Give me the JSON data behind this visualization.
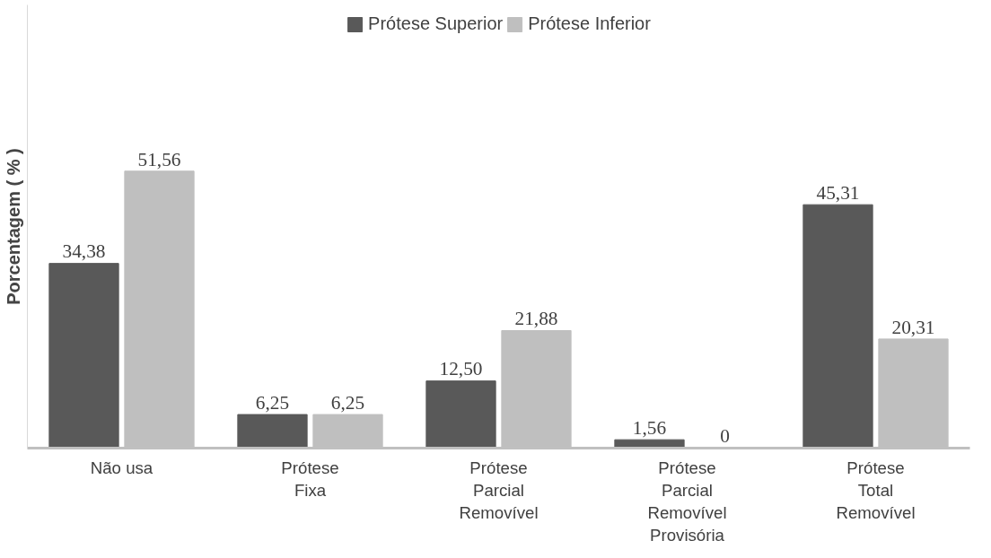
{
  "chart_data": {
    "type": "bar",
    "ylabel": "Porcentagem ( % )",
    "categories": [
      "Não usa",
      "Prótese\nFixa",
      "Prótese\nParcial\nRemovível",
      "Prótese\nParcial\nRemovível\nProvisória",
      "Prótese\nTotal\nRemovível"
    ],
    "series": [
      {
        "name": "Prótese Superior",
        "color": "#595959",
        "values": [
          34.38,
          6.25,
          12.5,
          1.56,
          45.31
        ],
        "value_labels": [
          "34,38",
          "6,25",
          "12,50",
          "1,56",
          "45,31"
        ]
      },
      {
        "name": "Prótese Inferior",
        "color": "#bfbfbf",
        "values": [
          51.56,
          6.25,
          21.88,
          0,
          20.31
        ],
        "value_labels": [
          "51,56",
          "6,25",
          "21,88",
          "0",
          "20,31"
        ]
      }
    ],
    "legend": "top"
  }
}
